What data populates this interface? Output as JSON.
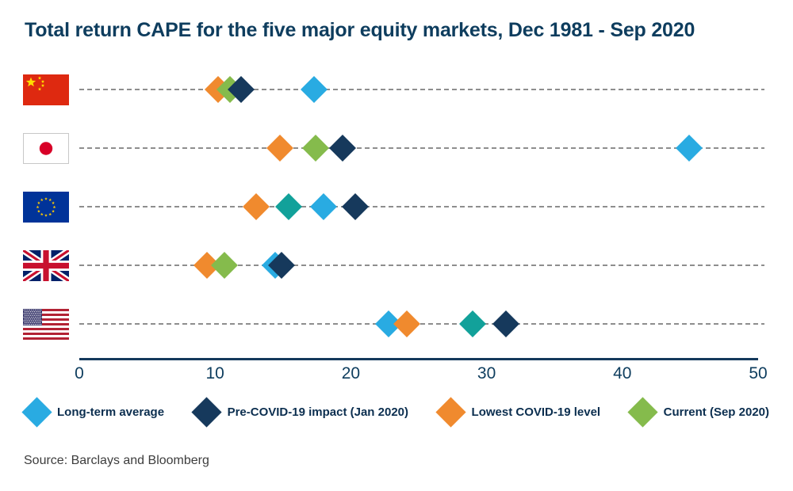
{
  "title": "Total return CAPE for the five major equity markets, Dec 1981 - Sep 2020",
  "source_note": "Source: Barclays and Bloomberg",
  "palette": {
    "long_term_average": "#29abe2",
    "pre_covid_impact": "#16395c",
    "lowest_covid_level": "#f08a2e",
    "current_green": "#85bb4c",
    "current_teal": "#12a19a",
    "axis_line": "#14395c",
    "axis_text": "#0e3d5e",
    "dashed_gridline": "#8e8e8e",
    "title_text": "#0e3d5e"
  },
  "legend": [
    {
      "label": "Long-term average",
      "color": "#29abe2",
      "icon": "diamond-icon"
    },
    {
      "label": "Pre-COVID-19 impact (Jan 2020)",
      "color": "#16395c",
      "icon": "diamond-icon"
    },
    {
      "label": "Lowest COVID-19 level",
      "color": "#f08a2e",
      "icon": "diamond-icon"
    },
    {
      "label": "Current (Sep 2020)",
      "color": "#85bb4c",
      "icon": "diamond-icon"
    }
  ],
  "chart_data": {
    "type": "scatter",
    "title": "Total return CAPE for the five major equity markets, Dec 1981 - Sep 2020",
    "xlabel": "",
    "ylabel": "",
    "xlim": [
      0,
      50
    ],
    "x_ticks": [
      "0",
      "10",
      "20",
      "30",
      "40",
      "50"
    ],
    "grid": "dashed-horizontal-per-row",
    "legend_position": "bottom",
    "series_names": [
      "Long-term average",
      "Pre-COVID-19 impact (Jan 2020)",
      "Lowest COVID-19 level",
      "Current (Sep 2020)"
    ],
    "rows": [
      {
        "market": "China",
        "flag": "cn",
        "points": [
          {
            "series": "Long-term average",
            "value": 17.3,
            "color": "#29abe2",
            "z": 1
          },
          {
            "series": "Lowest COVID-19 level",
            "value": 10.2,
            "color": "#f08a2e",
            "z": 2
          },
          {
            "series": "Current (Sep 2020)",
            "value": 11.1,
            "color": "#85bb4c",
            "z": 3
          },
          {
            "series": "Pre-COVID-19 impact (Jan 2020)",
            "value": 11.9,
            "color": "#16395c",
            "z": 4
          }
        ]
      },
      {
        "market": "Japan",
        "flag": "jp",
        "points": [
          {
            "series": "Long-term average",
            "value": 44.9,
            "color": "#29abe2",
            "z": 1
          },
          {
            "series": "Lowest COVID-19 level",
            "value": 14.8,
            "color": "#f08a2e",
            "z": 2
          },
          {
            "series": "Current (Sep 2020)",
            "value": 17.4,
            "color": "#85bb4c",
            "z": 3
          },
          {
            "series": "Pre-COVID-19 impact (Jan 2020)",
            "value": 19.4,
            "color": "#16395c",
            "z": 4
          }
        ]
      },
      {
        "market": "Eurozone",
        "flag": "eu",
        "points": [
          {
            "series": "Long-term average",
            "value": 18.0,
            "color": "#29abe2",
            "z": 1
          },
          {
            "series": "Lowest COVID-19 level",
            "value": 13.0,
            "color": "#f08a2e",
            "z": 2
          },
          {
            "series": "Current (Sep 2020)",
            "value": 15.4,
            "color": "#12a19a",
            "z": 3
          },
          {
            "series": "Pre-COVID-19 impact (Jan 2020)",
            "value": 20.3,
            "color": "#16395c",
            "z": 4
          }
        ]
      },
      {
        "market": "UK",
        "flag": "uk",
        "points": [
          {
            "series": "Long-term average",
            "value": 14.4,
            "color": "#29abe2",
            "z": 1
          },
          {
            "series": "Lowest COVID-19 level",
            "value": 9.4,
            "color": "#f08a2e",
            "z": 2
          },
          {
            "series": "Current (Sep 2020)",
            "value": 10.7,
            "color": "#85bb4c",
            "z": 3
          },
          {
            "series": "Pre-COVID-19 impact (Jan 2020)",
            "value": 14.9,
            "color": "#16395c",
            "z": 4
          }
        ]
      },
      {
        "market": "US",
        "flag": "us",
        "points": [
          {
            "series": "Long-term average",
            "value": 22.8,
            "color": "#29abe2",
            "z": 1
          },
          {
            "series": "Lowest COVID-19 level",
            "value": 24.1,
            "color": "#f08a2e",
            "z": 2
          },
          {
            "series": "Current (Sep 2020)",
            "value": 29.0,
            "color": "#12a19a",
            "z": 3
          },
          {
            "series": "Pre-COVID-19 impact (Jan 2020)",
            "value": 31.4,
            "color": "#16395c",
            "z": 4
          }
        ]
      }
    ]
  }
}
